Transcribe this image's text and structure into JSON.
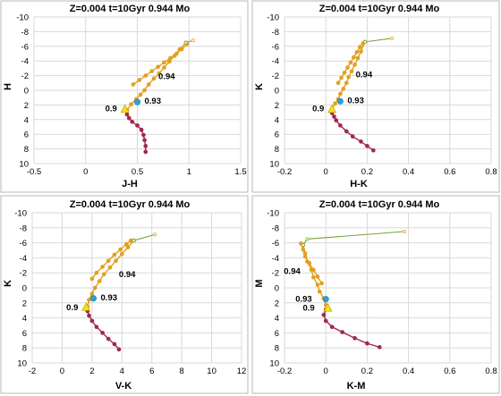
{
  "chart_data": [
    {
      "type": "line",
      "title": "Z=0.004  t=10Gyr 0.944 Mo",
      "xlabel": "J-H",
      "ylabel": "H",
      "xlim": [
        -0.5,
        1.5
      ],
      "ylim": [
        10,
        -10
      ],
      "xticks": [
        "-0.5",
        "0",
        "0.5",
        "1",
        "1.5"
      ],
      "yticks": [
        "-10",
        "-8",
        "-6",
        "-4",
        "-2",
        "0",
        "2",
        "4",
        "6",
        "8",
        "10"
      ],
      "grid": true,
      "colors": {
        "track_low": "#a0294f",
        "track_high": "#e3a020",
        "post_agb": "#77a33c",
        "marker_093": "#29a3d6",
        "marker_09": "#f2e020"
      },
      "series": [
        {
          "part": "main-sequence",
          "x": [
            0.58,
            0.58,
            0.57,
            0.56,
            0.54,
            0.5,
            0.45,
            0.42,
            0.4
          ],
          "y": [
            8.4,
            7.6,
            6.8,
            6.1,
            5.4,
            4.8,
            4.3,
            3.8,
            3.3
          ]
        },
        {
          "part": "giant-branch",
          "x": [
            0.4,
            0.44,
            0.49,
            0.53,
            0.57,
            0.61,
            0.66,
            0.71,
            0.76,
            0.81,
            0.86,
            0.91,
            0.97
          ],
          "y": [
            2.7,
            1.9,
            1.2,
            0.6,
            0.0,
            -0.8,
            -1.6,
            -2.3,
            -3.1,
            -3.9,
            -4.7,
            -5.6,
            -6.5
          ]
        },
        {
          "part": "horizontal-branch",
          "x": [
            0.46,
            0.52,
            0.58,
            0.64,
            0.7,
            0.76,
            0.82,
            0.88,
            0.93,
            0.98
          ],
          "y": [
            -0.8,
            -1.4,
            -2.0,
            -2.6,
            -3.2,
            -3.8,
            -4.4,
            -5.0,
            -5.6,
            -6.3
          ]
        },
        {
          "part": "agb-tip",
          "x": [
            0.97,
            1.04
          ],
          "y": [
            -6.5,
            -6.8
          ]
        }
      ],
      "markers": [
        {
          "name": "0.94",
          "x": 0.6,
          "y": -1.9
        },
        {
          "name": "0.93",
          "x": 0.5,
          "y": 1.6
        },
        {
          "name": "0.9",
          "x": 0.38,
          "y": 2.6
        }
      ],
      "labels": [
        "0.94",
        "0.93",
        "0.9"
      ]
    },
    {
      "type": "line",
      "title": "Z=0.004  t=10Gyr 0.944 Mo",
      "xlabel": "H-K",
      "ylabel": "K",
      "xlim": [
        -0.2,
        0.8
      ],
      "ylim": [
        10,
        -10
      ],
      "xticks": [
        "-0.2",
        "0",
        "0.2",
        "0.4",
        "0.6",
        "0.8"
      ],
      "yticks": [
        "-10",
        "-8",
        "-6",
        "-4",
        "-2",
        "0",
        "2",
        "4",
        "6",
        "8",
        "10"
      ],
      "grid": true,
      "colors": {
        "track_low": "#a0294f",
        "track_high": "#e3a020",
        "post_agb": "#77a33c",
        "marker_093": "#29a3d6",
        "marker_09": "#f2e020"
      },
      "series": [
        {
          "part": "main-sequence",
          "x": [
            0.23,
            0.2,
            0.17,
            0.13,
            0.1,
            0.07,
            0.05,
            0.04,
            0.03
          ],
          "y": [
            8.2,
            7.6,
            7.0,
            6.3,
            5.6,
            4.8,
            4.1,
            3.6,
            3.1
          ]
        },
        {
          "part": "giant-branch",
          "x": [
            0.03,
            0.045,
            0.06,
            0.07,
            0.085,
            0.1,
            0.11,
            0.125,
            0.14,
            0.155,
            0.17,
            0.19
          ],
          "y": [
            2.5,
            1.8,
            1.2,
            0.5,
            -0.2,
            -1.0,
            -1.8,
            -2.6,
            -3.5,
            -4.4,
            -5.3,
            -6.6
          ]
        },
        {
          "part": "horizontal-branch",
          "x": [
            0.06,
            0.075,
            0.09,
            0.105,
            0.12,
            0.135,
            0.15,
            0.165,
            0.18
          ],
          "y": [
            -1.0,
            -1.7,
            -2.4,
            -3.1,
            -3.8,
            -4.5,
            -5.2,
            -5.9,
            -6.4
          ]
        },
        {
          "part": "agb-tip",
          "x": [
            0.19,
            0.32
          ],
          "y": [
            -6.6,
            -7.1
          ]
        }
      ],
      "markers": [
        {
          "name": "0.94",
          "x": 0.11,
          "y": -2.0
        },
        {
          "name": "0.93",
          "x": 0.07,
          "y": 1.5
        },
        {
          "name": "0.9",
          "x": 0.03,
          "y": 2.6
        }
      ],
      "labels": [
        "0.94",
        "0.93",
        "0.9"
      ]
    },
    {
      "type": "line",
      "title": "Z=0.004  t=10Gyr 0.944 Mo",
      "xlabel": "V-K",
      "ylabel": "K",
      "xlim": [
        -2,
        12
      ],
      "ylim": [
        10,
        -10
      ],
      "xticks": [
        "-2",
        "0",
        "2",
        "4",
        "6",
        "8",
        "10",
        "12"
      ],
      "grid": true,
      "yticks": [
        "-10",
        "-8",
        "-6",
        "-4",
        "-2",
        "0",
        "2",
        "4",
        "6",
        "8",
        "10"
      ],
      "colors": {
        "track_low": "#a0294f",
        "track_high": "#e3a020",
        "post_agb": "#77a33c",
        "marker_093": "#29a3d6",
        "marker_09": "#f2e020"
      },
      "series": [
        {
          "part": "main-sequence",
          "x": [
            3.8,
            3.5,
            3.1,
            2.7,
            2.3,
            2.0,
            1.8,
            1.7
          ],
          "y": [
            8.2,
            7.5,
            6.8,
            6.0,
            5.2,
            4.4,
            3.7,
            3.1
          ]
        },
        {
          "part": "giant-branch",
          "x": [
            1.7,
            1.8,
            2.0,
            2.2,
            2.5,
            2.8,
            3.2,
            3.6,
            4.0,
            4.4,
            4.8
          ],
          "y": [
            2.5,
            1.6,
            0.8,
            0.0,
            -0.9,
            -1.8,
            -2.7,
            -3.6,
            -4.5,
            -5.4,
            -6.3
          ]
        },
        {
          "part": "horizontal-branch",
          "x": [
            2.0,
            2.3,
            2.7,
            3.1,
            3.5,
            3.9,
            4.3,
            4.6
          ],
          "y": [
            -1.2,
            -2.0,
            -2.8,
            -3.6,
            -4.4,
            -5.1,
            -5.8,
            -6.3
          ]
        },
        {
          "part": "agb-tip",
          "x": [
            4.8,
            6.2
          ],
          "y": [
            -6.3,
            -7.1
          ]
        }
      ],
      "markers": [
        {
          "name": "0.94",
          "x": 3.2,
          "y": -1.9
        },
        {
          "name": "0.93",
          "x": 2.1,
          "y": 1.4
        },
        {
          "name": "0.9",
          "x": 1.6,
          "y": 2.6
        }
      ],
      "labels": [
        "0.94",
        "0.93",
        "0.9"
      ]
    },
    {
      "type": "line",
      "title": "Z=0.004  t=10Gyr 0.944 Mo",
      "xlabel": "K-M",
      "ylabel": "M",
      "xlim": [
        -0.2,
        0.8
      ],
      "ylim": [
        10,
        -10
      ],
      "xticks": [
        "-0.2",
        "0",
        "0.2",
        "0.4",
        "0.6",
        "0.8"
      ],
      "yticks": [
        "-10",
        "-8",
        "-6",
        "-4",
        "-2",
        "0",
        "2",
        "4",
        "6",
        "8",
        "10"
      ],
      "grid": true,
      "colors": {
        "track_low": "#a0294f",
        "track_high": "#e3a020",
        "post_agb": "#77a33c",
        "marker_093": "#29a3d6",
        "marker_09": "#f2e020",
        "track_tail": "#111111"
      },
      "series": [
        {
          "part": "main-sequence",
          "x": [
            0.26,
            0.2,
            0.14,
            0.08,
            0.03,
            0.0,
            -0.01,
            0.0
          ],
          "y": [
            7.9,
            7.4,
            6.7,
            5.9,
            5.2,
            4.4,
            3.6,
            2.9
          ]
        },
        {
          "part": "giant-branch",
          "x": [
            0.0,
            -0.01,
            -0.03,
            -0.04,
            -0.06,
            -0.07,
            -0.09,
            -0.1,
            -0.11
          ],
          "y": [
            2.3,
            1.4,
            0.5,
            -0.4,
            -1.4,
            -2.4,
            -3.5,
            -4.6,
            -5.7
          ]
        },
        {
          "part": "horizontal-branch",
          "x": [
            -0.02,
            -0.04,
            -0.06,
            -0.08,
            -0.1,
            -0.11,
            -0.12
          ],
          "y": [
            -0.6,
            -1.5,
            -2.4,
            -3.3,
            -4.2,
            -5.1,
            -5.9
          ]
        },
        {
          "part": "agb-tip",
          "x": [
            -0.11,
            -0.09,
            0.38
          ],
          "y": [
            -5.7,
            -6.5,
            -7.5
          ]
        }
      ],
      "markers": [
        {
          "name": "0.94",
          "x": -0.03,
          "y": -2.2
        },
        {
          "name": "0.93",
          "x": 0.0,
          "y": 1.5
        },
        {
          "name": "0.9",
          "x": 0.01,
          "y": 2.7
        }
      ],
      "labels": [
        "0.94",
        "0.93",
        "0.9"
      ]
    }
  ]
}
